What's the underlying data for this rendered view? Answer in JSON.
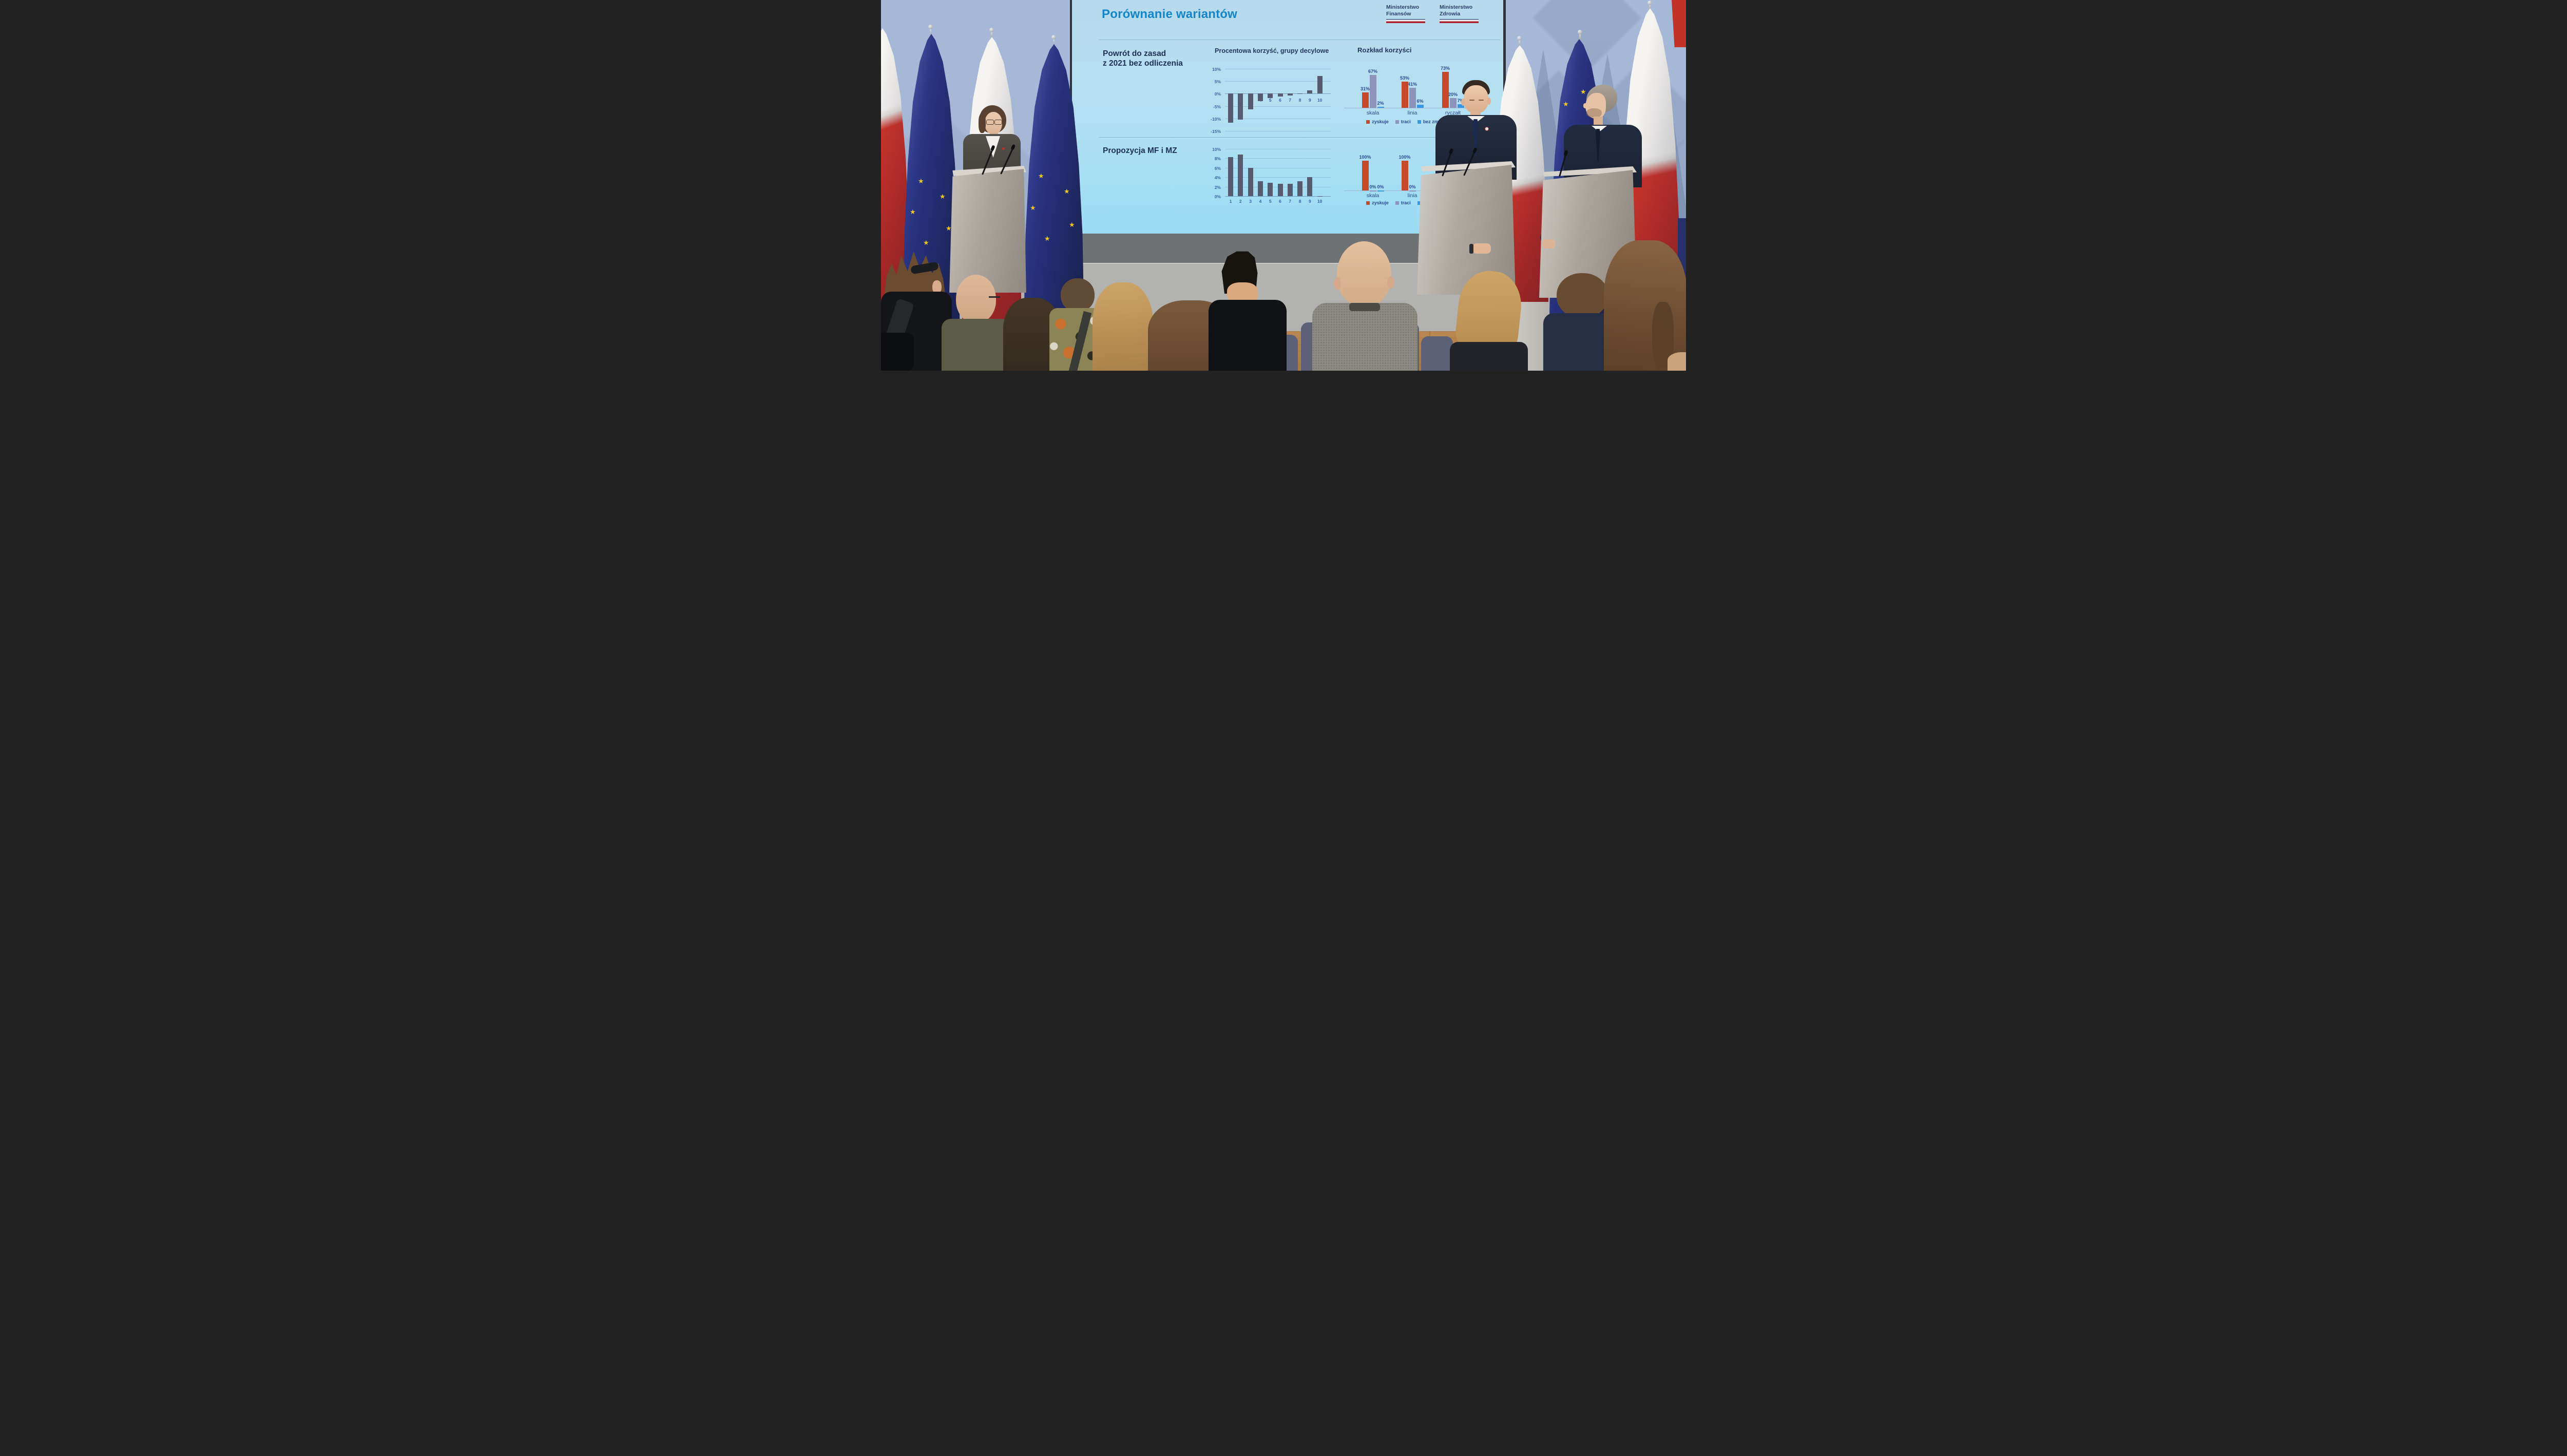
{
  "slide": {
    "title": "Porównanie wariantów",
    "header_logos": [
      {
        "line1": "Ministerstwo",
        "line2": "Finansów"
      },
      {
        "line1": "Ministerstwo",
        "line2": "Zdrowia"
      }
    ],
    "rows": [
      {
        "label_line1": "Powrót do zasad",
        "label_line2": "z 2021 bez odliczenia"
      },
      {
        "label_line1": "Propozycja MF i MZ",
        "label_line2": ""
      }
    ]
  },
  "chart_data": [
    {
      "id": "korzysc_2021",
      "type": "bar",
      "title": "Procentowa korzyść, grupy decylowe",
      "xlabel": "grupy decylowe",
      "ylabel": "",
      "categories": [
        "1",
        "2",
        "3",
        "4",
        "5",
        "6",
        "7",
        "8",
        "9",
        "10"
      ],
      "values": [
        -11.7,
        -10.4,
        -6.4,
        -3.0,
        -1.7,
        -1.1,
        -0.7,
        -0.1,
        1.4,
        7.2
      ],
      "unit": "%",
      "ylim": [
        -15,
        10
      ],
      "ytick_step": 5,
      "grid": true,
      "bar_color": "#565b6f",
      "note": "values estimated from gridlines"
    },
    {
      "id": "rozklad_2021",
      "type": "grouped-bar",
      "title": "Rozkład korzyści",
      "categories": [
        "skala",
        "linia",
        "ryczałt"
      ],
      "series": [
        {
          "name": "zyskuje",
          "color": "#c7492c",
          "values": [
            31,
            53,
            73
          ]
        },
        {
          "name": "traci",
          "color": "#8e93bb",
          "values": [
            67,
            41,
            20
          ]
        },
        {
          "name": "bez zmian",
          "color": "#3b97e6",
          "values": [
            2,
            6,
            7
          ]
        }
      ],
      "unit": "%",
      "ylim": [
        0,
        100
      ],
      "data_labels": true,
      "legend_position": "bottom"
    },
    {
      "id": "korzysc_mfmz",
      "type": "bar",
      "title": "",
      "categories": [
        "1",
        "2",
        "3",
        "4",
        "5",
        "6",
        "7",
        "8",
        "9",
        "10"
      ],
      "values": [
        8.3,
        8.8,
        6.0,
        3.1,
        2.8,
        2.6,
        2.6,
        3.1,
        4.0,
        0
      ],
      "unit": "%",
      "ylim": [
        0,
        10
      ],
      "ytick_step": 2,
      "grid": true,
      "bar_color": "#565b6f",
      "note": "values estimated from gridlines"
    },
    {
      "id": "rozklad_mfmz",
      "type": "grouped-bar",
      "title": "",
      "categories": [
        "skala",
        "linia",
        "ryczałt"
      ],
      "series": [
        {
          "name": "zyskuje",
          "color": "#c7492c",
          "values": [
            100,
            100,
            78
          ]
        },
        {
          "name": "traci",
          "color": "#8e93bb",
          "values": [
            0,
            0,
            null
          ]
        },
        {
          "name": "bez zmian",
          "color": "#3b97e6",
          "values": [
            0,
            null,
            null
          ]
        }
      ],
      "unit": "%",
      "ylim": [
        0,
        100
      ],
      "data_labels": true,
      "legend_position": "bottom",
      "note": "null values are hidden behind speaker and podium in the photo"
    }
  ],
  "palette": {
    "wall": "#a3b6d5",
    "screen_top": "#b7daec",
    "screen_bottom": "#9bdcf4",
    "slide_title_blue": "#1486c8",
    "navy_text": "#1d2f55",
    "eu_flag_navy": "#2a3585",
    "flag_red": "#cf342b",
    "podium_gray": "#a8a199",
    "riser_gray": "#6f7274",
    "carpet_gray": "#b2b2b0",
    "wood_floor": "#b5854e"
  }
}
